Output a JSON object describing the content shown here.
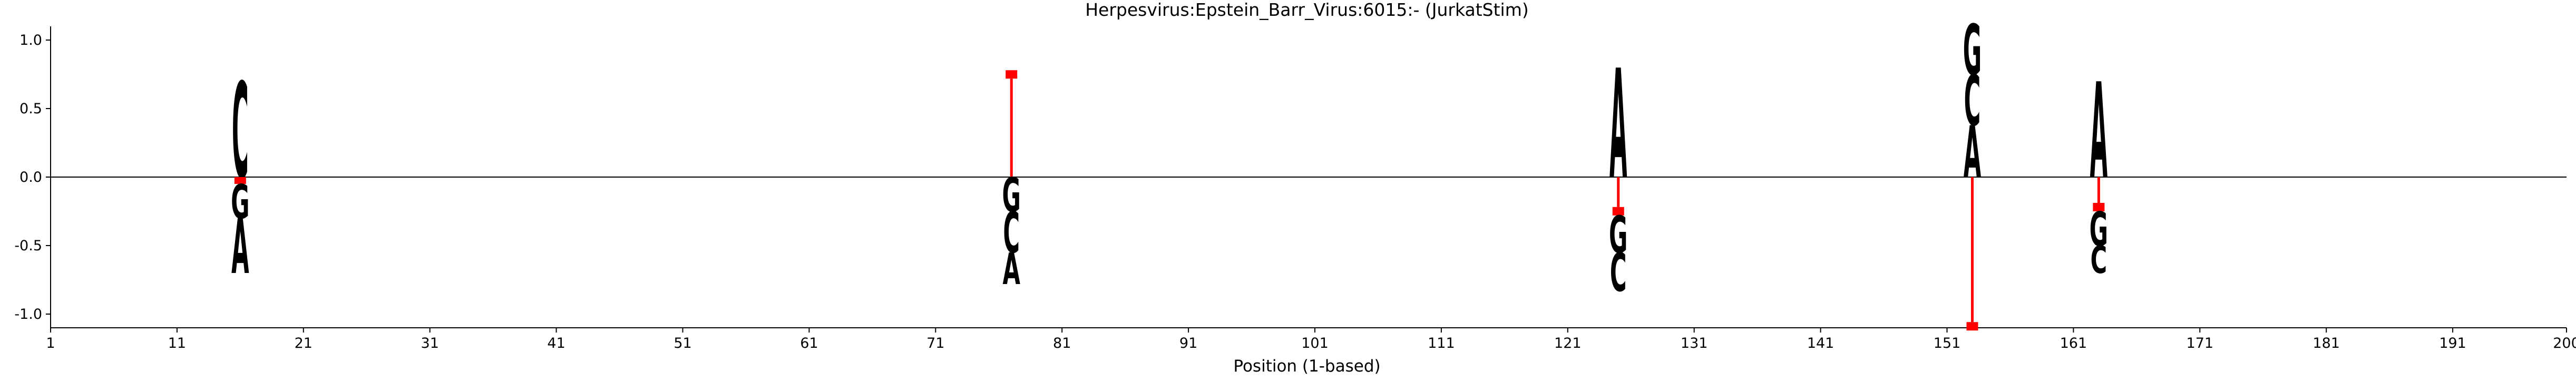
{
  "chart_data": {
    "type": "sequence-logo",
    "title": "Herpesvirus:Epstein_Barr_Virus:6015:-  (JurkatStim)",
    "xlabel": "Position (1-based)",
    "ylabel": "",
    "xlim": [
      1,
      200
    ],
    "ylim": [
      -1.1,
      1.1
    ],
    "x_ticks": [
      1,
      11,
      21,
      31,
      41,
      51,
      61,
      71,
      81,
      91,
      101,
      111,
      121,
      131,
      141,
      151,
      161,
      171,
      181,
      191,
      200
    ],
    "y_ticks": [
      {
        "value": 1.0,
        "label": "1.0"
      },
      {
        "value": 0.5,
        "label": "0.5"
      },
      {
        "value": 0.0,
        "label": "0.0"
      },
      {
        "value": -0.5,
        "label": "-0.5"
      },
      {
        "value": -1.0,
        "label": "-1.0"
      }
    ],
    "colors": {
      "A": "#008000",
      "C": "#0000ff",
      "G": "#ffa500",
      "T": "#ff0000",
      "gap": "#ff0000",
      "baseline": "#000000"
    },
    "positions": [
      {
        "position": 16,
        "above": [
          {
            "letter": "C",
            "height": 0.7
          }
        ],
        "below": [
          {
            "letter": "-",
            "height": 0.05
          },
          {
            "letter": "G",
            "height": 0.25
          },
          {
            "letter": "A",
            "height": 0.4
          }
        ]
      },
      {
        "position": 77,
        "above": [
          {
            "letter": "-",
            "height": 0.78
          }
        ],
        "below": [
          {
            "letter": "G",
            "height": 0.25
          },
          {
            "letter": "C",
            "height": 0.3
          },
          {
            "letter": "A",
            "height": 0.23
          }
        ]
      },
      {
        "position": 125,
        "above": [
          {
            "letter": "A",
            "height": 0.8
          }
        ],
        "below": [
          {
            "letter": "-",
            "height": 0.28
          },
          {
            "letter": "G",
            "height": 0.27
          },
          {
            "letter": "C",
            "height": 0.28
          }
        ]
      },
      {
        "position": 153,
        "above": [
          {
            "letter": "A",
            "height": 0.38
          },
          {
            "letter": "C",
            "height": 0.37
          },
          {
            "letter": "G",
            "height": 0.37
          }
        ],
        "below": [
          {
            "letter": "-",
            "height": 1.12
          }
        ]
      },
      {
        "position": 163,
        "above": [
          {
            "letter": "A",
            "height": 0.7
          }
        ],
        "below": [
          {
            "letter": "-",
            "height": 0.25
          },
          {
            "letter": "G",
            "height": 0.25
          },
          {
            "letter": "C",
            "height": 0.2
          }
        ]
      }
    ]
  }
}
